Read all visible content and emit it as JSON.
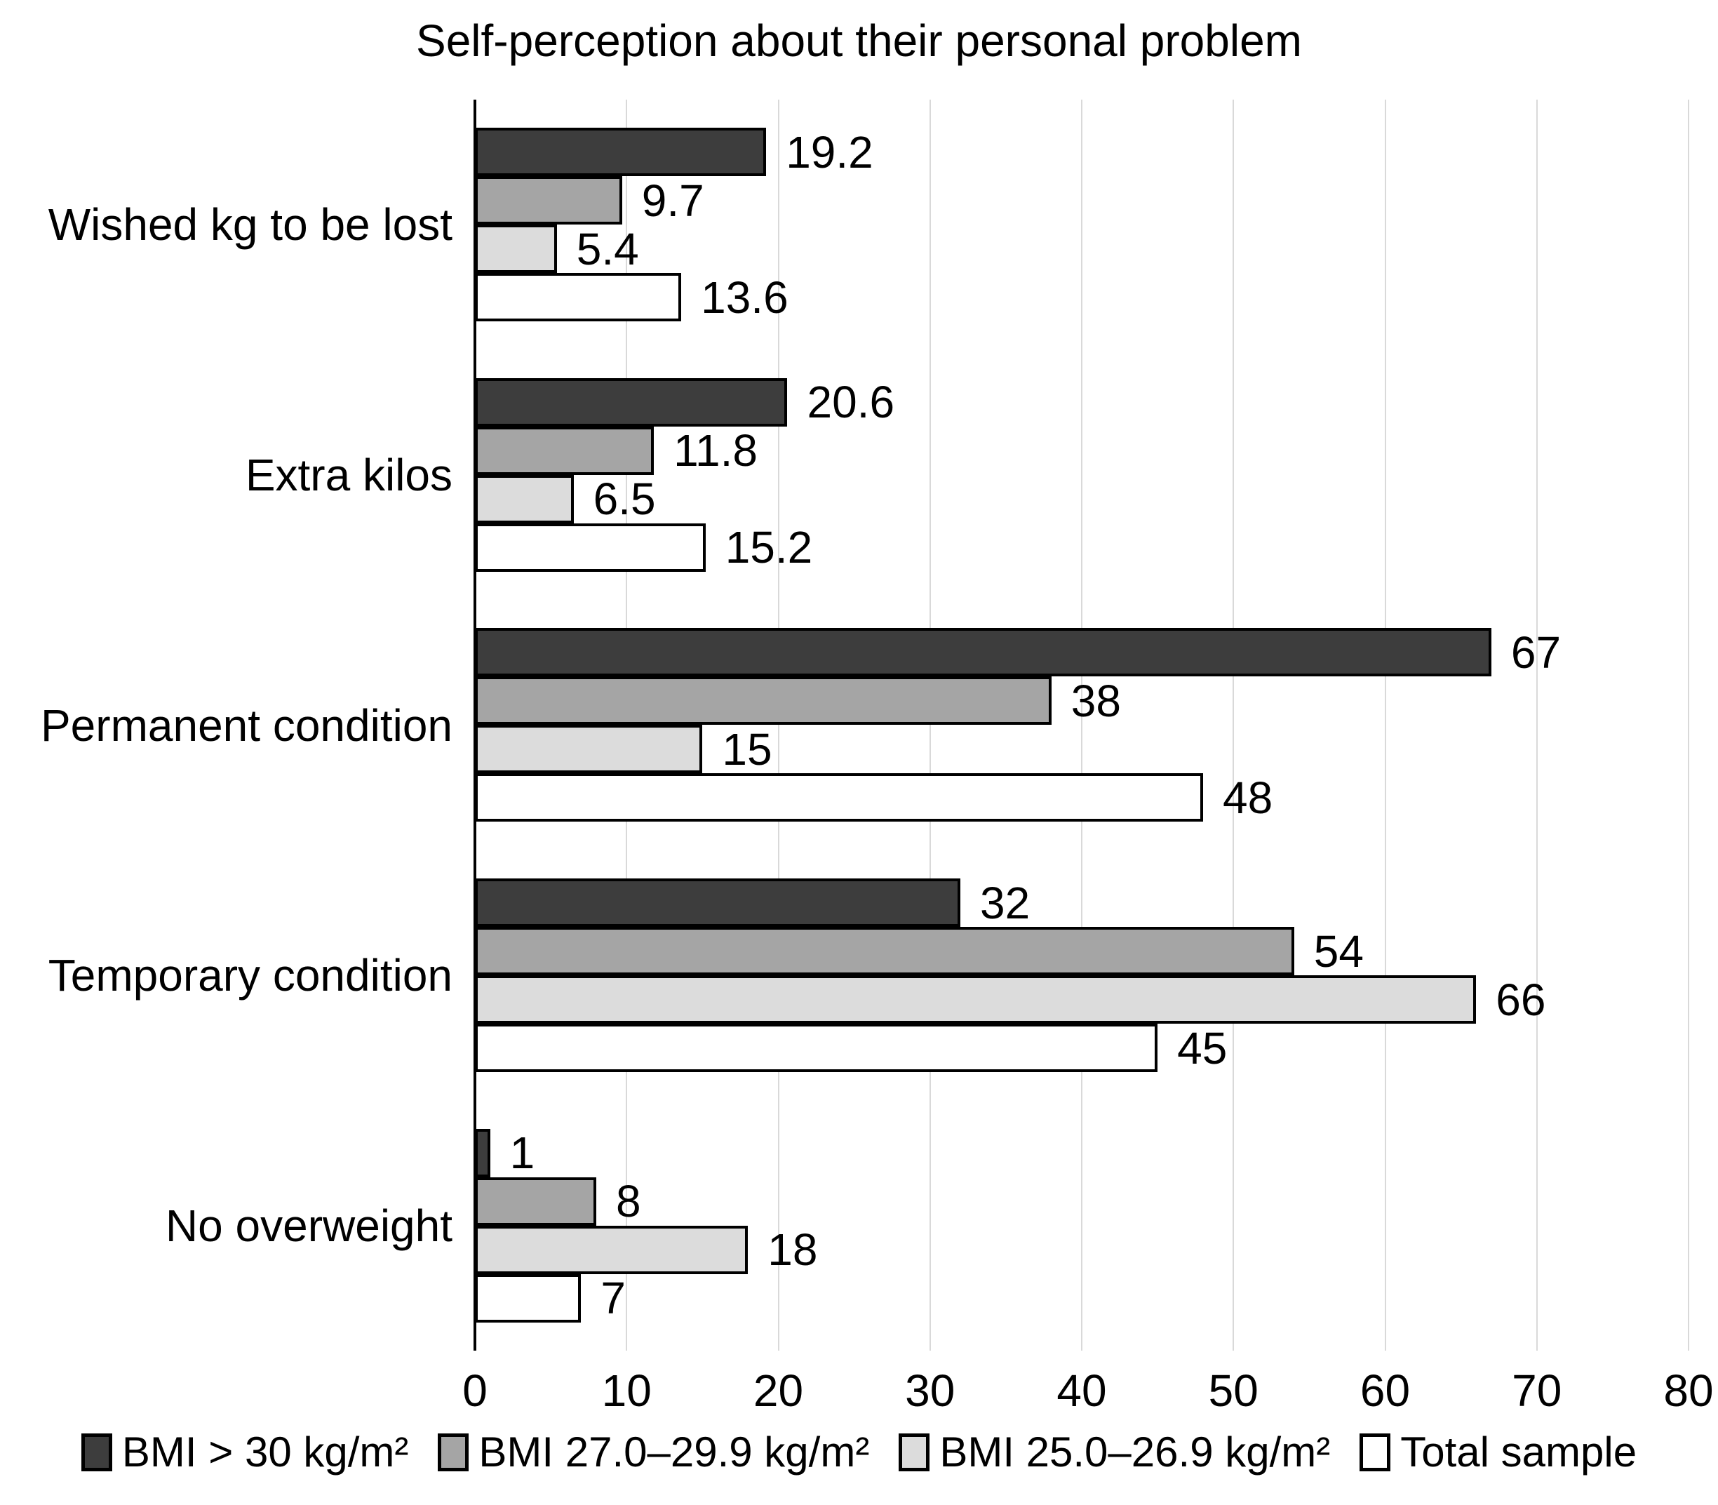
{
  "title": "Self-perception about their personal problem",
  "chart_data": {
    "type": "bar",
    "orientation": "horizontal",
    "title": "Self-perception about their personal problem",
    "categories": [
      "Wished kg to be lost",
      "Extra kilos",
      "Permanent condition",
      "Temporary condition",
      "No overweight"
    ],
    "series": [
      {
        "name": "BMI > 30 kg/m²",
        "color": "#3d3d3d",
        "values": [
          19.2,
          20.6,
          67,
          32,
          1
        ]
      },
      {
        "name": "BMI 27.0–29.9 kg/m²",
        "color": "#a5a5a5",
        "values": [
          9.7,
          11.8,
          38,
          54,
          8
        ]
      },
      {
        "name": "BMI 25.0–26.9 kg/m²",
        "color": "#dcdcdc",
        "values": [
          5.4,
          6.5,
          15,
          66,
          18
        ]
      },
      {
        "name": "Total sample",
        "color": "#ffffff",
        "values": [
          13.6,
          15.2,
          48,
          45,
          7
        ]
      }
    ],
    "xlim": [
      0,
      80
    ],
    "x_ticks": [
      0,
      10,
      20,
      30,
      40,
      50,
      60,
      70,
      80
    ],
    "grid": true,
    "gridline_color": "#d9d9d9",
    "bar_border_color": "#000000",
    "legend_position": "bottom"
  }
}
